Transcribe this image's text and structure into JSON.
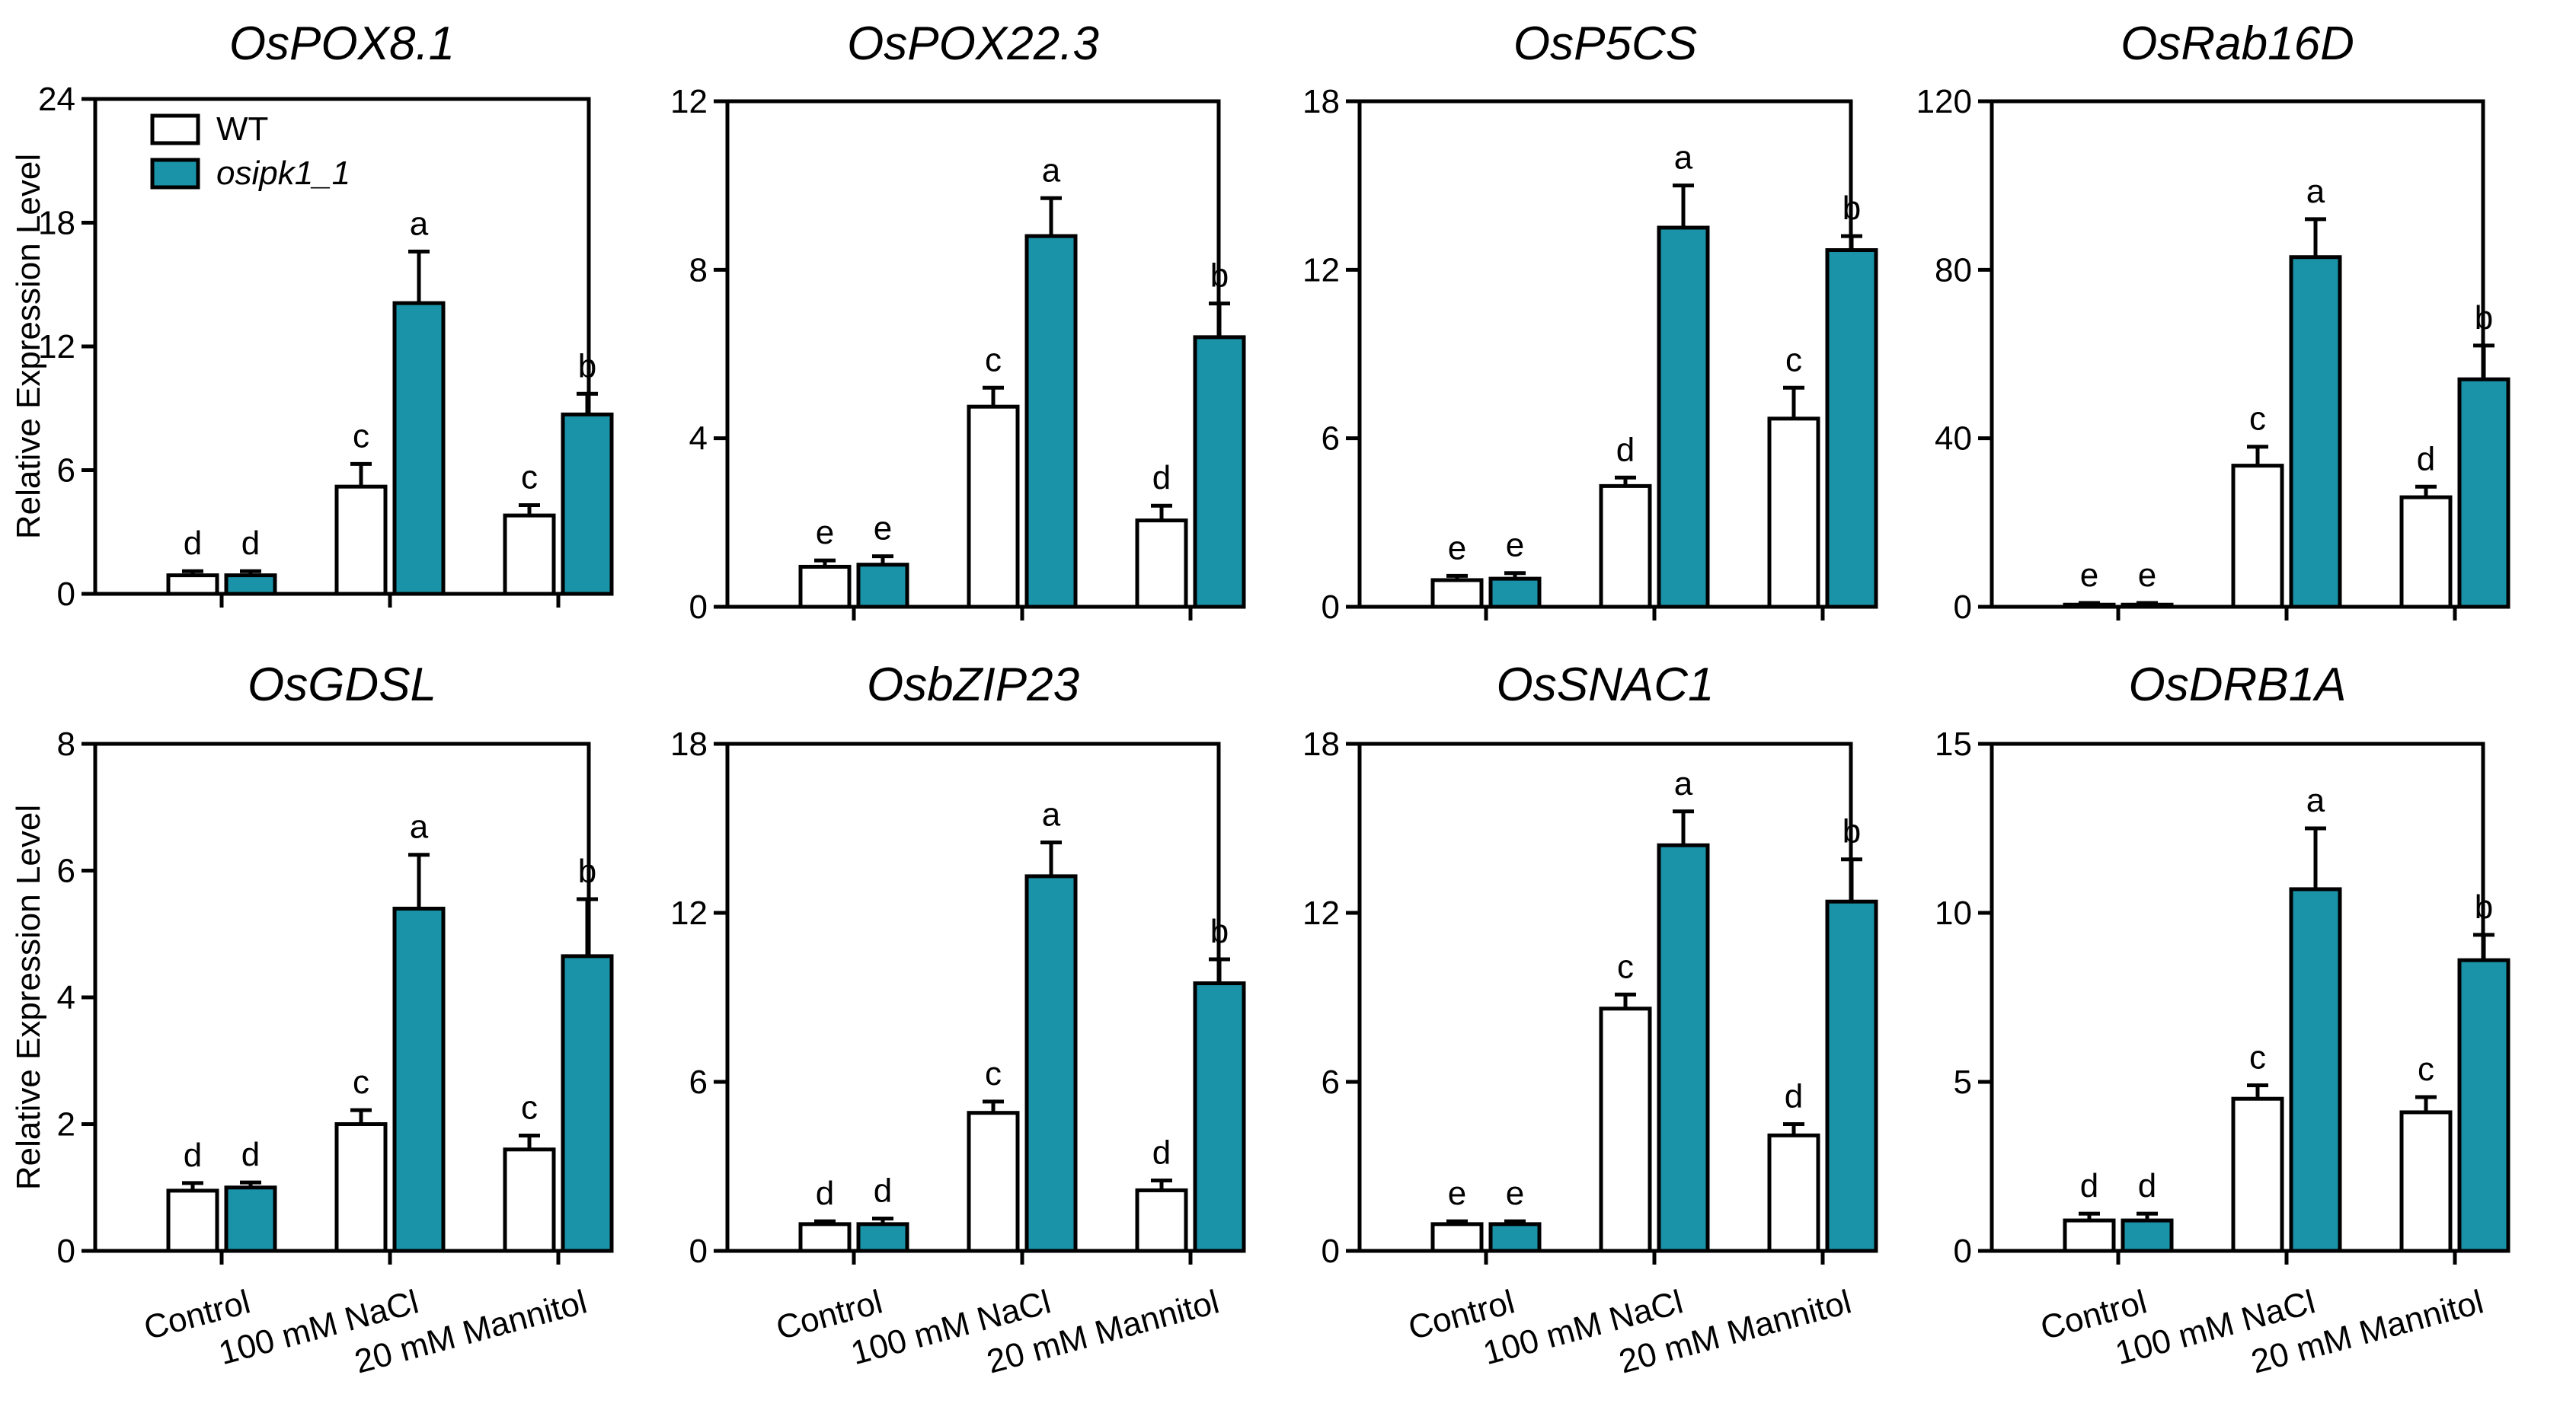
{
  "colors": {
    "wt": "#ffffff",
    "mutant": "#1a93a8",
    "stroke": "#000000"
  },
  "legend": {
    "entries": [
      "WT",
      "osipk1_1"
    ],
    "placement": "top-left of first panel"
  },
  "chart_data": [
    {
      "type": "bar",
      "title": "OsPOX8.1",
      "ylabel": "Relative Expression Level",
      "categories": [
        "Control",
        "100 mM NaCl",
        "20 mM Mannitol"
      ],
      "ylim": [
        0,
        24
      ],
      "yticks": [
        "0",
        "6",
        "12",
        "18",
        "24"
      ],
      "series": [
        {
          "name": "WT",
          "values": [
            0.9,
            5.2,
            3.8
          ],
          "errors": [
            0.2,
            1.1,
            0.5
          ],
          "letters": [
            "d",
            "c",
            "c"
          ]
        },
        {
          "name": "osipk1_1",
          "values": [
            0.9,
            14.1,
            8.7
          ],
          "errors": [
            0.2,
            2.5,
            1.0
          ],
          "letters": [
            "d",
            "a",
            "b"
          ]
        }
      ]
    },
    {
      "type": "bar",
      "title": "OsPOX22.3",
      "ylabel": "",
      "categories": [
        "Control",
        "100 mM NaCl",
        "20 mM Mannitol"
      ],
      "ylim": [
        0,
        12
      ],
      "yticks": [
        "0",
        "4",
        "8",
        "12"
      ],
      "series": [
        {
          "name": "WT",
          "values": [
            0.95,
            4.75,
            2.05
          ],
          "errors": [
            0.15,
            0.45,
            0.35
          ],
          "letters": [
            "e",
            "c",
            "d"
          ]
        },
        {
          "name": "osipk1_1",
          "values": [
            1.0,
            8.8,
            6.4
          ],
          "errors": [
            0.2,
            0.9,
            0.8
          ],
          "letters": [
            "e",
            "a",
            "b"
          ]
        }
      ]
    },
    {
      "type": "bar",
      "title": "OsP5CS",
      "ylabel": "",
      "categories": [
        "Control",
        "100 mM NaCl",
        "20 mM Mannitol"
      ],
      "ylim": [
        0,
        18
      ],
      "yticks": [
        "0",
        "6",
        "12",
        "18"
      ],
      "series": [
        {
          "name": "WT",
          "values": [
            0.95,
            4.3,
            6.7
          ],
          "errors": [
            0.15,
            0.3,
            1.1
          ],
          "letters": [
            "e",
            "d",
            "c"
          ]
        },
        {
          "name": "osipk1_1",
          "values": [
            1.0,
            13.5,
            12.7
          ],
          "errors": [
            0.2,
            1.5,
            0.5
          ],
          "letters": [
            "e",
            "a",
            "b"
          ]
        }
      ]
    },
    {
      "type": "bar",
      "title": "OsRab16D",
      "ylabel": "",
      "categories": [
        "Control",
        "100 mM NaCl",
        "20 mM Mannitol"
      ],
      "ylim": [
        0,
        120
      ],
      "yticks": [
        "0",
        "40",
        "80",
        "120"
      ],
      "series": [
        {
          "name": "WT",
          "values": [
            0.5,
            33.5,
            26.0
          ],
          "errors": [
            0.4,
            4.5,
            2.5
          ],
          "letters": [
            "e",
            "c",
            "d"
          ]
        },
        {
          "name": "osipk1_1",
          "values": [
            0.5,
            83.0,
            54.0
          ],
          "errors": [
            0.4,
            9.0,
            8.0
          ],
          "letters": [
            "e",
            "a",
            "b"
          ]
        }
      ]
    },
    {
      "type": "bar",
      "title": "OsGDSL",
      "ylabel": "Relative Expression Level",
      "categories": [
        "Control",
        "100 mM NaCl",
        "20 mM Mannitol"
      ],
      "ylim": [
        0,
        8
      ],
      "yticks": [
        "0",
        "2",
        "4",
        "6",
        "8"
      ],
      "series": [
        {
          "name": "WT",
          "values": [
            0.95,
            2.0,
            1.6
          ],
          "errors": [
            0.12,
            0.22,
            0.22
          ],
          "letters": [
            "d",
            "c",
            "c"
          ]
        },
        {
          "name": "osipk1_1",
          "values": [
            1.0,
            5.4,
            4.65
          ],
          "errors": [
            0.08,
            0.85,
            0.9
          ],
          "letters": [
            "d",
            "a",
            "b"
          ]
        }
      ]
    },
    {
      "type": "bar",
      "title": "OsbZIP23",
      "ylabel": "",
      "categories": [
        "Control",
        "100 mM NaCl",
        "20 mM Mannitol"
      ],
      "ylim": [
        0,
        18
      ],
      "yticks": [
        "0",
        "6",
        "12",
        "18"
      ],
      "series": [
        {
          "name": "WT",
          "values": [
            0.95,
            4.9,
            2.15
          ],
          "errors": [
            0.1,
            0.4,
            0.35
          ],
          "letters": [
            "d",
            "c",
            "d"
          ]
        },
        {
          "name": "osipk1_1",
          "values": [
            0.95,
            13.3,
            9.5
          ],
          "errors": [
            0.2,
            1.2,
            0.85
          ],
          "letters": [
            "d",
            "a",
            "b"
          ]
        }
      ]
    },
    {
      "type": "bar",
      "title": "OsSNAC1",
      "ylabel": "",
      "categories": [
        "Control",
        "100 mM NaCl",
        "20 mM Mannitol"
      ],
      "ylim": [
        0,
        18
      ],
      "yticks": [
        "0",
        "6",
        "12",
        "18"
      ],
      "series": [
        {
          "name": "WT",
          "values": [
            0.95,
            8.6,
            4.1
          ],
          "errors": [
            0.1,
            0.5,
            0.4
          ],
          "letters": [
            "e",
            "c",
            "d"
          ]
        },
        {
          "name": "osipk1_1",
          "values": [
            0.95,
            14.4,
            12.4
          ],
          "errors": [
            0.1,
            1.2,
            1.5
          ],
          "letters": [
            "e",
            "a",
            "b"
          ]
        }
      ]
    },
    {
      "type": "bar",
      "title": "OsDRB1A",
      "ylabel": "",
      "categories": [
        "Control",
        "100 mM NaCl",
        "20 mM Mannitol"
      ],
      "ylim": [
        0,
        15
      ],
      "yticks": [
        "0",
        "5",
        "10",
        "15"
      ],
      "series": [
        {
          "name": "WT",
          "values": [
            0.9,
            4.5,
            4.1
          ],
          "errors": [
            0.2,
            0.4,
            0.45
          ],
          "letters": [
            "d",
            "c",
            "c"
          ]
        },
        {
          "name": "osipk1_1",
          "values": [
            0.9,
            10.7,
            8.6
          ],
          "errors": [
            0.2,
            1.8,
            0.75
          ],
          "letters": [
            "d",
            "a",
            "b"
          ]
        }
      ]
    }
  ]
}
